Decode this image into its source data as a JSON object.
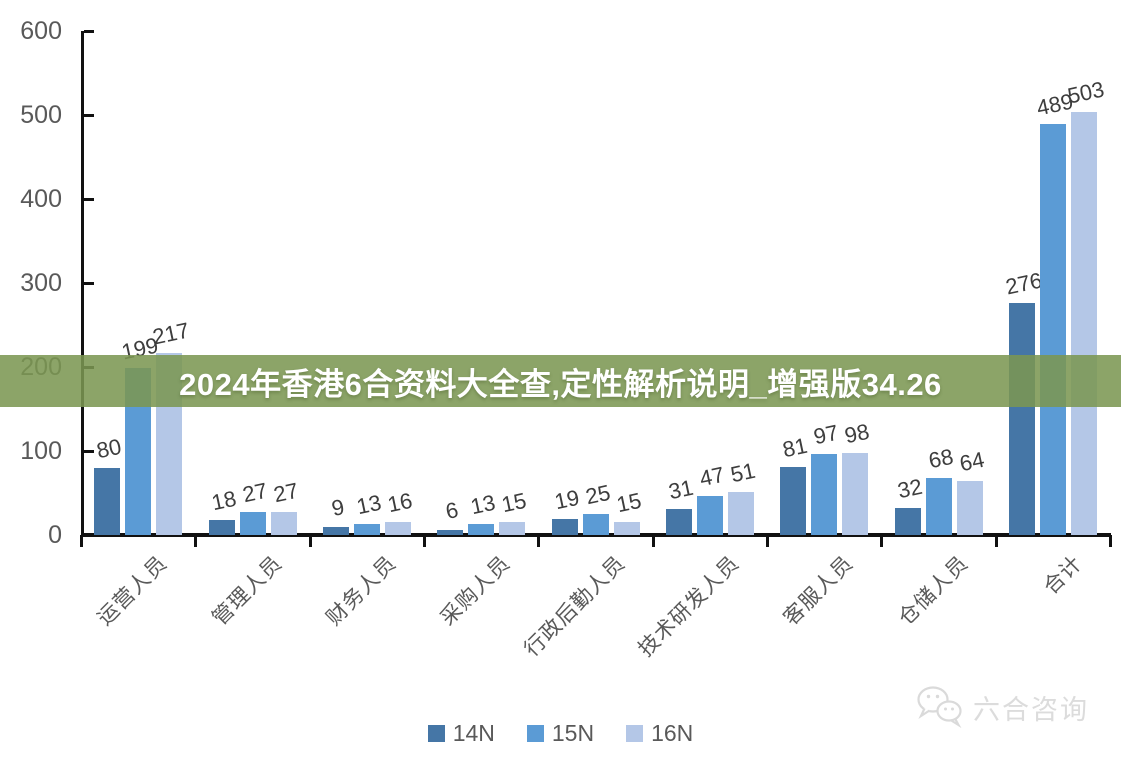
{
  "banner": {
    "text": "2024年香港6合资料大全查,定性解析说明_增强版34.26",
    "bg_color": "#7b9651",
    "text_color": "#ffffff"
  },
  "watermark": {
    "icon": "wechat-icon",
    "text": "六合咨询"
  },
  "chart_data": {
    "type": "bar",
    "categories": [
      "运营人员",
      "管理人员",
      "财务人员",
      "采购人员",
      "行政后勤人员",
      "技术研发人员",
      "客服人员",
      "仓储人员",
      "合计"
    ],
    "series": [
      {
        "name": "14N",
        "color": "#4576a6",
        "values": [
          80,
          18,
          9,
          6,
          19,
          31,
          81,
          32,
          276
        ]
      },
      {
        "name": "15N",
        "color": "#5b9bd5",
        "values": [
          199,
          27,
          13,
          13,
          25,
          47,
          97,
          68,
          489
        ]
      },
      {
        "name": "16N",
        "color": "#b4c7e7",
        "values": [
          217,
          27,
          16,
          15,
          15,
          51,
          98,
          64,
          503
        ]
      }
    ],
    "title": "",
    "xlabel": "",
    "ylabel": "",
    "ylim": [
      0,
      600
    ],
    "yticks": [
      0,
      100,
      200,
      300,
      400,
      500,
      600
    ],
    "grid": false,
    "legend_position": "bottom",
    "data_labels": true,
    "axis_color": "#111111",
    "data_label_color": "#3d3d3d",
    "tick_label_color": "#595959"
  }
}
